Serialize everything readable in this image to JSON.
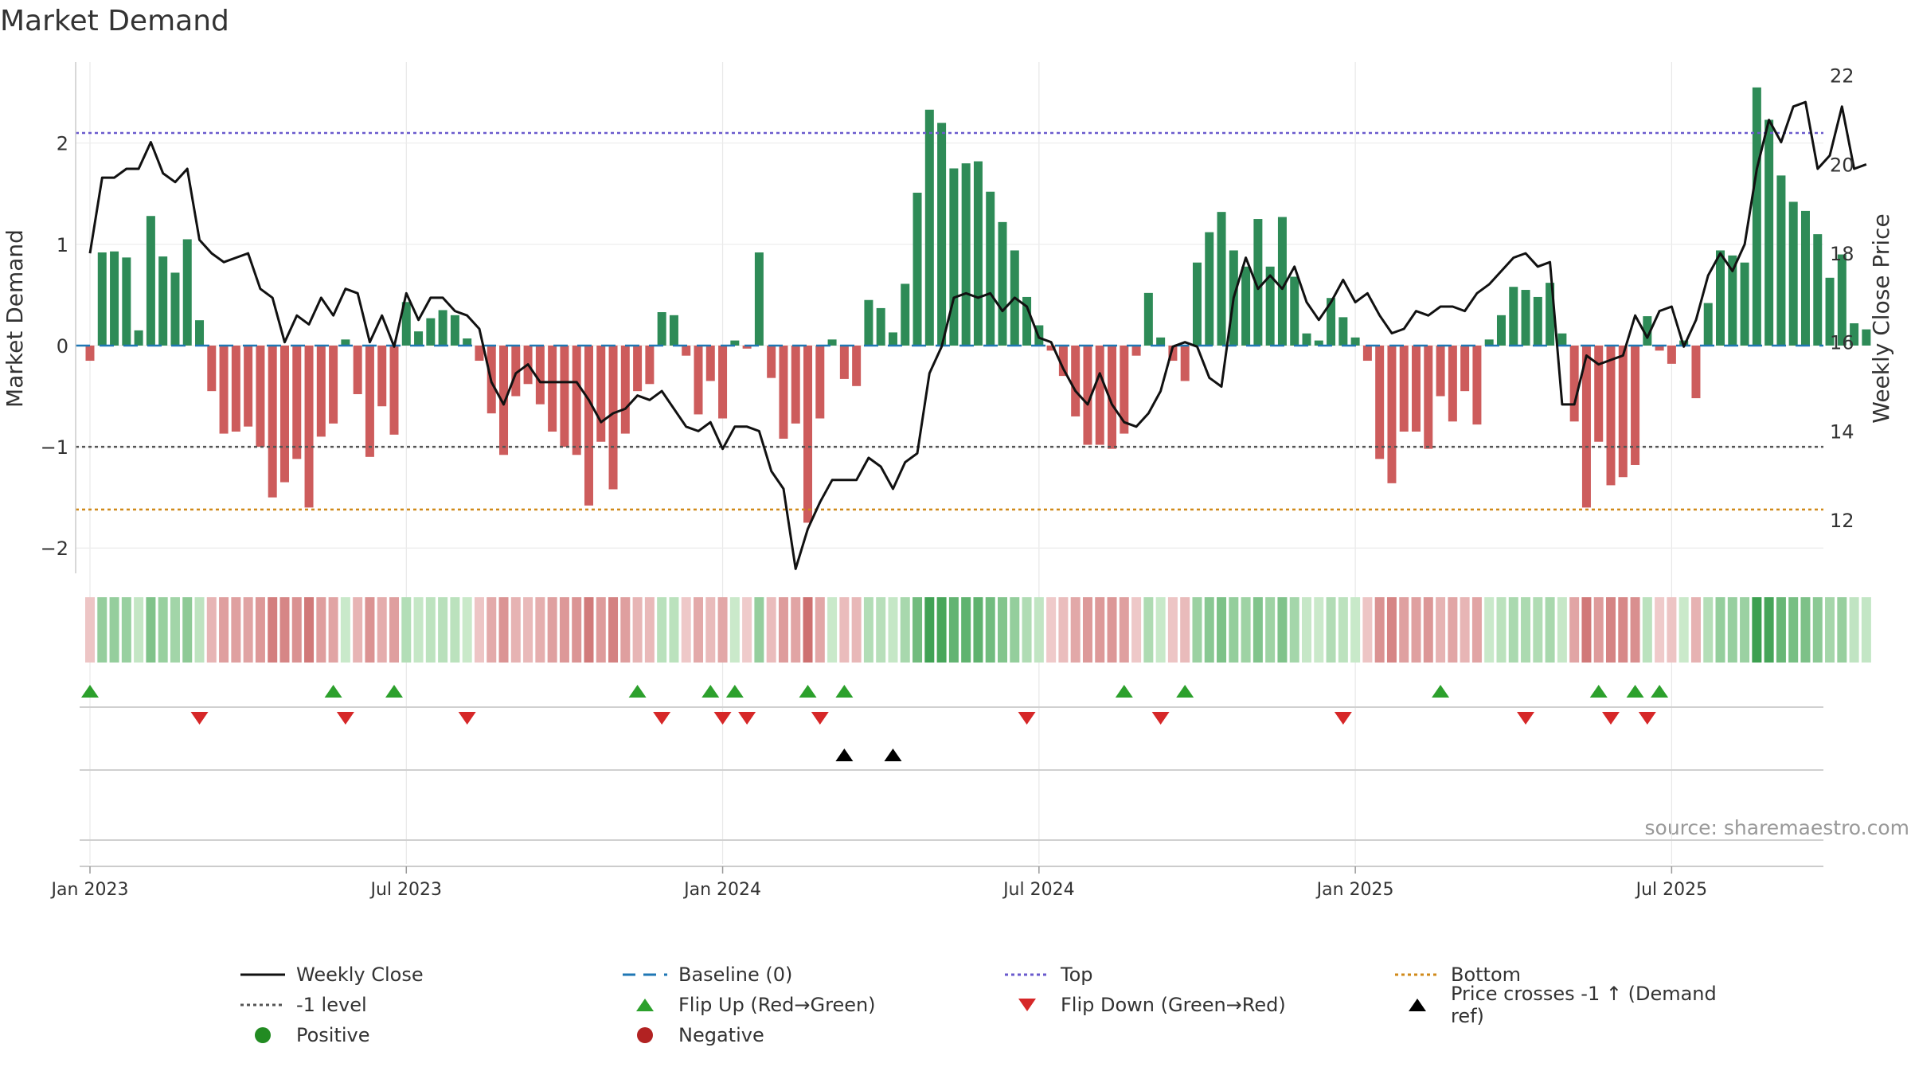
{
  "title": "Market Demand",
  "source": "source: sharemaestro.com",
  "colors": {
    "positive_bar": "#2e8b57",
    "negative_bar": "#cd5c5c",
    "close_line": "#111111",
    "baseline": "#1f77b4",
    "top_line": "#6a5acd",
    "minus1_line": "#555555",
    "bottom_line": "#d08a1a",
    "flip_up": "#2ca02c",
    "flip_down": "#d62728",
    "price_cross": "#000000"
  },
  "chart_data": {
    "type": "bar+line",
    "title": "Market Demand",
    "ylabel_left": "Market Demand",
    "ylabel_right": "Weekly Close Price",
    "ylim_left": [
      -2.25,
      2.8
    ],
    "ylim_right": [
      10.8,
      22.3
    ],
    "yticks_left": [
      2,
      1,
      0,
      -1,
      -2
    ],
    "ytick_labels_left": [
      "2",
      "1",
      "0",
      "−1",
      "−2"
    ],
    "yticks_right": [
      22,
      20,
      18,
      16,
      14,
      12
    ],
    "ytick_labels_right": [
      "22",
      "20",
      "18",
      "16",
      "14",
      "12"
    ],
    "xtick_labels": [
      "Jan 2023",
      "Jul 2023",
      "Jan 2024",
      "Jul 2024",
      "Jan 2025",
      "Jul 2025"
    ],
    "xtick_weeks": [
      0,
      26,
      52,
      78,
      104,
      130
    ],
    "reference_levels": {
      "top": 2.1,
      "minus_one": -1.0,
      "bottom": -1.62,
      "baseline": 0
    },
    "demand": [
      -0.15,
      0.92,
      0.93,
      0.87,
      0.15,
      1.28,
      0.88,
      0.72,
      1.05,
      0.25,
      -0.45,
      -0.87,
      -0.85,
      -0.8,
      -1.0,
      -1.5,
      -1.35,
      -1.12,
      -1.6,
      -0.9,
      -0.77,
      0.06,
      -0.48,
      -1.1,
      -0.6,
      -0.88,
      0.43,
      0.14,
      0.27,
      0.35,
      0.3,
      0.07,
      -0.15,
      -0.67,
      -1.08,
      -0.5,
      -0.38,
      -0.58,
      -0.85,
      -1.0,
      -1.08,
      -1.58,
      -0.95,
      -1.42,
      -0.87,
      -0.45,
      -0.38,
      0.33,
      0.3,
      -0.1,
      -0.68,
      -0.35,
      -0.72,
      0.05,
      -0.03,
      0.92,
      -0.32,
      -0.92,
      -0.77,
      -1.75,
      -0.72,
      0.06,
      -0.33,
      -0.4,
      0.45,
      0.37,
      0.13,
      0.61,
      1.51,
      2.33,
      2.2,
      1.75,
      1.8,
      1.82,
      1.52,
      1.22,
      0.94,
      0.48,
      0.2,
      -0.05,
      -0.3,
      -0.7,
      -0.98,
      -0.98,
      -1.02,
      -0.87,
      -0.1,
      0.52,
      0.08,
      -0.15,
      -0.35,
      0.82,
      1.12,
      1.32,
      0.94,
      0.78,
      1.25,
      0.78,
      1.27,
      0.68,
      0.12,
      0.05,
      0.47,
      0.28,
      0.08,
      -0.15,
      -1.12,
      -1.36,
      -0.85,
      -0.85,
      -1.02,
      -0.5,
      -0.75,
      -0.45,
      -0.78,
      0.06,
      0.3,
      0.58,
      0.55,
      0.48,
      0.62,
      0.12,
      -0.75,
      -1.6,
      -0.95,
      -1.38,
      -1.3,
      -1.18,
      0.29,
      -0.05,
      -0.18,
      0.05,
      -0.52,
      0.42,
      0.94,
      0.89,
      0.82,
      2.55,
      2.23,
      1.68,
      1.42,
      1.33,
      1.1,
      0.67,
      0.9,
      0.22,
      0.16
    ],
    "close": [
      18.0,
      19.7,
      19.7,
      19.9,
      19.9,
      20.5,
      19.8,
      19.6,
      19.9,
      18.3,
      18.0,
      17.8,
      17.9,
      18.0,
      17.2,
      17.0,
      16.0,
      16.6,
      16.4,
      17.0,
      16.6,
      17.2,
      17.1,
      16.0,
      16.6,
      15.9,
      17.1,
      16.5,
      17.0,
      17.0,
      16.7,
      16.6,
      16.3,
      15.1,
      14.6,
      15.3,
      15.5,
      15.1,
      15.1,
      15.1,
      15.1,
      14.7,
      14.2,
      14.4,
      14.5,
      14.8,
      14.7,
      14.9,
      14.5,
      14.1,
      14.0,
      14.2,
      13.6,
      14.1,
      14.1,
      14.0,
      13.1,
      12.7,
      10.9,
      11.8,
      12.4,
      12.9,
      12.9,
      12.9,
      13.4,
      13.2,
      12.7,
      13.3,
      13.5,
      15.3,
      15.9,
      17.0,
      17.1,
      17.0,
      17.1,
      16.7,
      17.0,
      16.8,
      16.1,
      16.0,
      15.4,
      14.9,
      14.6,
      15.3,
      14.6,
      14.2,
      14.1,
      14.4,
      14.9,
      15.9,
      16.0,
      15.9,
      15.2,
      15.0,
      17.0,
      17.9,
      17.2,
      17.5,
      17.2,
      17.7,
      16.9,
      16.5,
      16.9,
      17.4,
      16.9,
      17.1,
      16.6,
      16.2,
      16.3,
      16.7,
      16.6,
      16.8,
      16.8,
      16.7,
      17.1,
      17.3,
      17.6,
      17.9,
      18.0,
      17.7,
      17.8,
      14.6,
      14.6,
      15.7,
      15.5,
      15.6,
      15.7,
      16.6,
      16.1,
      16.7,
      16.8,
      15.9,
      16.5,
      17.5,
      18.0,
      17.6,
      18.2,
      19.9,
      21.0,
      20.5,
      21.3,
      21.4,
      19.9,
      20.2,
      21.3,
      19.9,
      20.0
    ],
    "flip_up_weeks": [
      0,
      20,
      25,
      45,
      51,
      53,
      59,
      62,
      85,
      90,
      111,
      124,
      127,
      129
    ],
    "flip_down_weeks": [
      9,
      21,
      31,
      47,
      52,
      54,
      60,
      77,
      88,
      103,
      118,
      125,
      128
    ],
    "price_cross_weeks": [
      62,
      66
    ],
    "legend": [
      {
        "key": "line",
        "label": "Weekly Close"
      },
      {
        "key": "dash",
        "label": "Baseline (0)"
      },
      {
        "key": "dotted_top",
        "label": "Top"
      },
      {
        "key": "dotted_bottom",
        "label": "Bottom"
      },
      {
        "key": "dotted_minus1",
        "label": "-1 level"
      },
      {
        "key": "tri_up",
        "label": "Flip Up (Red→Green)"
      },
      {
        "key": "tri_down",
        "label": "Flip Down (Green→Red)"
      },
      {
        "key": "tri_black",
        "label": "Price crosses -1 ↑ (Demand ref)"
      },
      {
        "key": "dot_pos",
        "label": "Positive"
      },
      {
        "key": "dot_neg",
        "label": "Negative"
      }
    ]
  }
}
